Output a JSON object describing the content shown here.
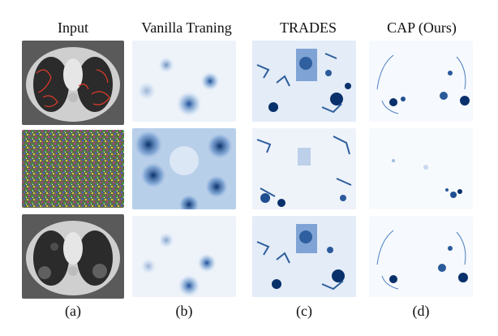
{
  "figure": {
    "columns": [
      {
        "title": "Input",
        "sublabel": "(a)"
      },
      {
        "title": "Vanilla Traning",
        "sublabel": "(b)"
      },
      {
        "title": "TRADES",
        "sublabel": "(c)"
      },
      {
        "title": "CAP (Ours)",
        "sublabel": "(d)"
      }
    ],
    "rows": [
      {
        "panels": [
          "ct-scan-with-red-lesion-outlines",
          "blurred-saliency-map",
          "noisy-saliency-map",
          "sparse-saliency-map"
        ]
      },
      {
        "panels": [
          "adversarial-noise-image",
          "blurred-saliency-map",
          "noisy-saliency-map",
          "sparse-saliency-map"
        ]
      },
      {
        "panels": [
          "ct-scan",
          "blurred-saliency-map",
          "noisy-saliency-map",
          "sparse-saliency-map"
        ]
      }
    ],
    "colors": {
      "saliency_dark": "#08306b",
      "saliency_mid": "#4a7fc1",
      "saliency_light": "#dbe6f4",
      "lesion_outline": "#e03a2a",
      "ct_background": "#555555"
    }
  }
}
